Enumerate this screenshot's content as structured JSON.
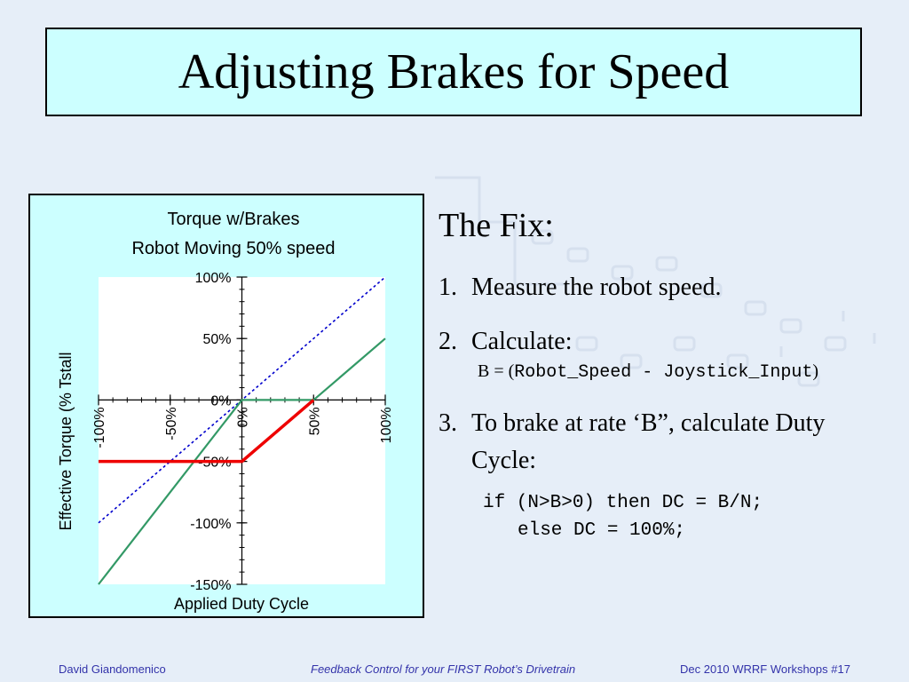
{
  "slide": {
    "title": "Adjusting Brakes for Speed",
    "background_color": "#e6eef8",
    "title_box_color": "#ccffff"
  },
  "chart_data": {
    "type": "line",
    "title": "Torque w/Brakes",
    "subtitle": "Robot Moving 50% speed",
    "xlabel": "Applied Duty Cycle",
    "ylabel": "Effective Torque (% Tstall",
    "xlim": [
      -100,
      100
    ],
    "ylim": [
      -150,
      100
    ],
    "x_ticks": [
      "-100%",
      "-50%",
      "0%",
      "50%",
      "100%"
    ],
    "y_ticks": [
      "100%",
      "50%",
      "0%",
      "-50%",
      "-100%",
      "-150%"
    ],
    "grid": false,
    "series": [
      {
        "color": "#0000cc",
        "style": "dotted",
        "x": [
          -100,
          100
        ],
        "y": [
          -100,
          100
        ]
      },
      {
        "color": "#339966",
        "style": "solid",
        "x": [
          -100,
          0,
          50,
          100
        ],
        "y": [
          -150,
          0,
          0,
          50
        ]
      },
      {
        "color": "#ee0000",
        "style": "solid",
        "x": [
          -100,
          0,
          50
        ],
        "y": [
          -50,
          -50,
          0
        ]
      }
    ]
  },
  "fix": {
    "heading": "The Fix:",
    "steps": [
      {
        "num": "1.",
        "text": "Measure the robot speed."
      },
      {
        "num": "2.",
        "text": "Calculate:"
      },
      {
        "num": "3.",
        "text": "To brake at rate ‘B”, calculate Duty Cycle:"
      }
    ],
    "formula_lhs": "B = (",
    "formula_code": "Robot_Speed - Joystick_Input",
    "formula_rhs": ")",
    "code_line1": "if (N>B>0) then DC = B/N;",
    "code_line2": "else DC = 100%;"
  },
  "footer": {
    "author": "David  Giandomenico",
    "course": "Feedback Control for your FIRST Robot’s Drivetrain",
    "event": "Dec 2010 WRRF Workshops  #17"
  }
}
